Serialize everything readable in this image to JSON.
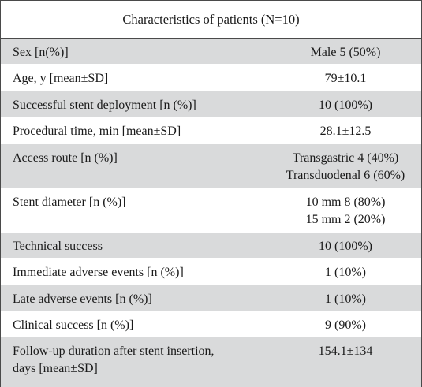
{
  "table": {
    "caption": "Characteristics of patients (N=10)",
    "rows": [
      {
        "label": "Sex [n(%)]",
        "values": [
          "Male 5 (50%)"
        ]
      },
      {
        "label": "Age, y [mean±SD]",
        "values": [
          "79±10.1"
        ]
      },
      {
        "label": "Successful stent deployment [n (%)]",
        "values": [
          "10 (100%)"
        ]
      },
      {
        "label": "Procedural time, min [mean±SD]",
        "values": [
          "28.1±12.5"
        ]
      },
      {
        "label": "Access route [n (%)]",
        "values": [
          "Transgastric 4 (40%)",
          "Transduodenal 6 (60%)"
        ]
      },
      {
        "label": "Stent diameter [n (%)]",
        "values": [
          "10 mm 8 (80%)",
          "15 mm 2 (20%)"
        ]
      },
      {
        "label": "Technical success",
        "values": [
          "10 (100%)"
        ]
      },
      {
        "label": "Immediate adverse events [n (%)]",
        "values": [
          "1 (10%)"
        ]
      },
      {
        "label": "Late adverse events [n (%)]",
        "values": [
          "1 (10%)"
        ]
      },
      {
        "label": "Clinical success [n (%)]",
        "values": [
          "9 (90%)"
        ]
      },
      {
        "label": "Follow-up duration after stent insertion, days [mean±SD]",
        "values": [
          "154.1±134"
        ]
      }
    ]
  }
}
